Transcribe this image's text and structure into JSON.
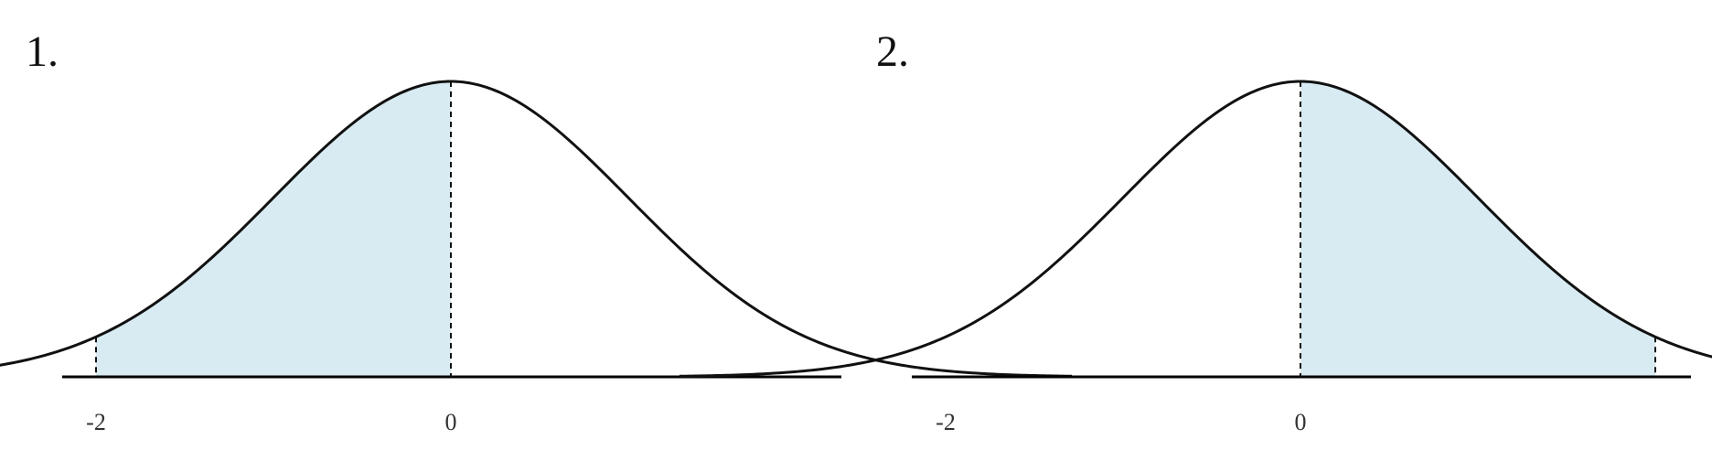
{
  "chart_data": [
    {
      "type": "area",
      "panel_label": "1.",
      "distribution": "normal",
      "mean": 0,
      "sd": 1,
      "xlim": [
        -3.5,
        3.5
      ],
      "shaded_region": {
        "from": -2,
        "to": 0
      },
      "ticks": [
        {
          "value": -2,
          "label": "-2"
        },
        {
          "value": 0,
          "label": "0"
        }
      ],
      "title": "",
      "xlabel": "",
      "ylabel": "",
      "grid": false,
      "colors": {
        "shade": "#d8ebf2",
        "curve": "#111111",
        "axis": "#000000"
      }
    },
    {
      "type": "area",
      "panel_label": "2.",
      "distribution": "normal",
      "mean": 0,
      "sd": 1,
      "xlim": [
        -3.5,
        3.5
      ],
      "shaded_region": {
        "from": 0,
        "to": 2
      },
      "ticks": [
        {
          "value": -2,
          "label": "-2"
        },
        {
          "value": 0,
          "label": "0"
        }
      ],
      "title": "",
      "xlabel": "",
      "ylabel": "",
      "grid": false,
      "colors": {
        "shade": "#d8ebf2",
        "curve": "#111111",
        "axis": "#000000"
      }
    }
  ]
}
